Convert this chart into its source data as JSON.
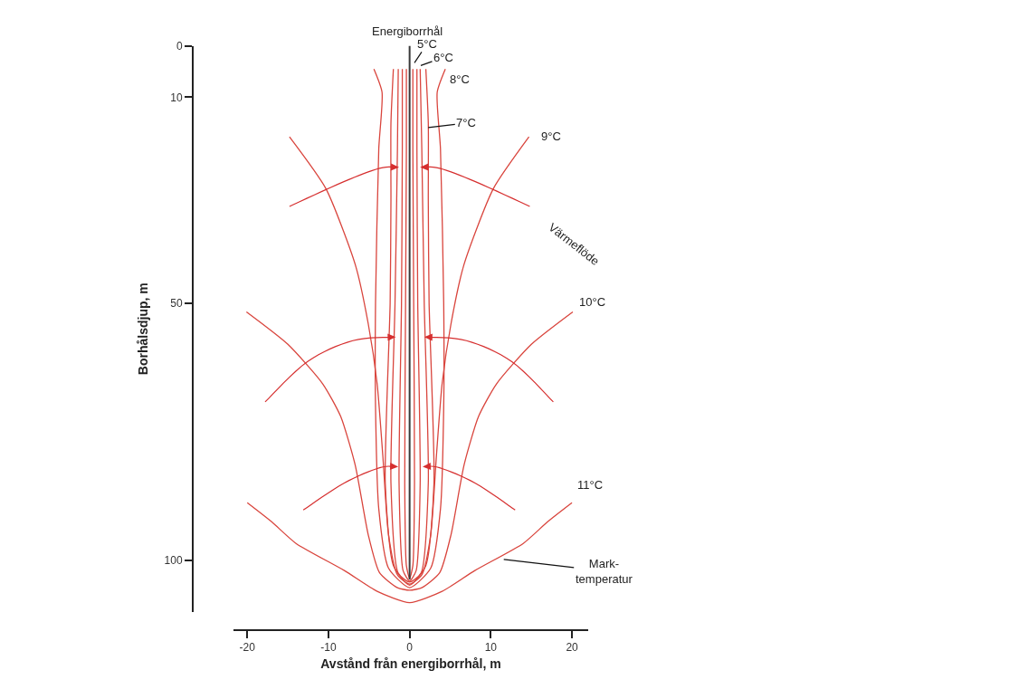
{
  "chart_data": {
    "type": "line",
    "xlabel": "Avstånd från energiborrhål, m",
    "ylabel": "Borhålsdjup, m",
    "xlim": [
      -21.7,
      22
    ],
    "ylim": [
      110,
      0
    ],
    "xticks": [
      -20,
      -10,
      0,
      10,
      20
    ],
    "yticks": [
      0,
      10,
      50,
      100
    ],
    "series": [
      {
        "color": "#d9453d",
        "x": [
          -0.4,
          -0.4,
          -0.5,
          -0.6,
          -0.4,
          0,
          0.4,
          0.6,
          0.5,
          0.4,
          0.4
        ],
        "values": [
          4.5,
          20,
          50,
          85,
          101,
          103.5,
          101,
          85,
          50,
          20,
          4.5
        ]
      },
      {
        "color": "#d9453d",
        "x": [
          -0.9,
          -0.9,
          -1.0,
          -1.3,
          -0.8,
          0,
          0.8,
          1.3,
          1.0,
          0.9,
          0.9
        ],
        "values": [
          4.5,
          20,
          50,
          85,
          102,
          104,
          102,
          85,
          50,
          20,
          4.5
        ]
      },
      {
        "color": "#d9453d",
        "x": [
          -1.4,
          -1.5,
          -1.8,
          -2.3,
          -1.4,
          0,
          1.4,
          2.3,
          1.8,
          1.5,
          1.3
        ],
        "values": [
          4.5,
          20,
          50,
          85,
          102.5,
          104.2,
          102.5,
          85,
          50,
          20,
          4.5
        ]
      },
      {
        "color": "#d9453d",
        "x": [
          -2.0,
          -2.3,
          -2.3,
          -2.4,
          -3.0,
          -2.0,
          0,
          2.0,
          3.0,
          2.4,
          2.3,
          2.3,
          2.0
        ],
        "values": [
          4.5,
          15,
          30,
          50,
          85,
          101,
          104.8,
          101,
          85,
          50,
          30,
          15,
          4.5
        ]
      },
      {
        "color": "#d9453d",
        "x": [
          -4.4,
          -3.4,
          -3.8,
          -4.2,
          -4.2,
          -3.8,
          -2.6,
          0,
          2.6,
          3.8,
          4.2,
          4.2,
          3.8,
          3.4,
          4.4
        ],
        "values": [
          4.5,
          9,
          20,
          50,
          70,
          90,
          101.5,
          105.3,
          101.5,
          90,
          70,
          50,
          20,
          9,
          4.5
        ]
      },
      {
        "color": "#d9453d",
        "x": [
          -14.8,
          -10.3,
          -6.7,
          -5.1,
          -4.0,
          -3.3,
          -2.6,
          -1.5,
          0,
          1.5,
          2.6,
          3.3,
          4.0,
          5.1,
          6.7,
          10.3,
          14.7
        ],
        "values": [
          17.7,
          27.8,
          42.5,
          54,
          65.7,
          79.7,
          95,
          102.8,
          104.6,
          102.8,
          95,
          79.7,
          65.7,
          54,
          42.5,
          27.8,
          17.7
        ]
      },
      {
        "color": "#d9453d",
        "x": [
          -20.1,
          -15,
          -10.7,
          -8.5,
          -6.7,
          -5.1,
          -3.7,
          -1.5,
          0,
          1.5,
          3.7,
          5.1,
          6.7,
          8.5,
          10.7,
          15,
          20.1
        ],
        "values": [
          51.7,
          58,
          65.7,
          72,
          81.5,
          95,
          102.4,
          105.3,
          105.8,
          105.3,
          102.4,
          95,
          81.5,
          72,
          65.7,
          58,
          51.7
        ]
      },
      {
        "color": "#d9453d",
        "x": [
          -20,
          -17,
          -14,
          -8,
          -4,
          0,
          4,
          8,
          14,
          17,
          20
        ],
        "values": [
          88.8,
          92.5,
          96.7,
          102,
          106,
          108.2,
          106,
          102,
          96.7,
          92.5,
          88.8
        ]
      },
      {
        "color": "#3a3a3a",
        "x": [
          0,
          0,
          0
        ],
        "values": [
          0,
          50,
          103.7
        ]
      }
    ],
    "annotations": [
      "Energiborrhål",
      "5°C",
      "6°C",
      "8°C",
      {
        "text": "7°C",
        "x": 2.3,
        "y": 15.9
      },
      "9°C",
      "Värmeflöde",
      "10°C",
      "11°C",
      {
        "text": "Mark-\ntemperatur",
        "x": 11.6,
        "y": 99.8
      }
    ]
  }
}
